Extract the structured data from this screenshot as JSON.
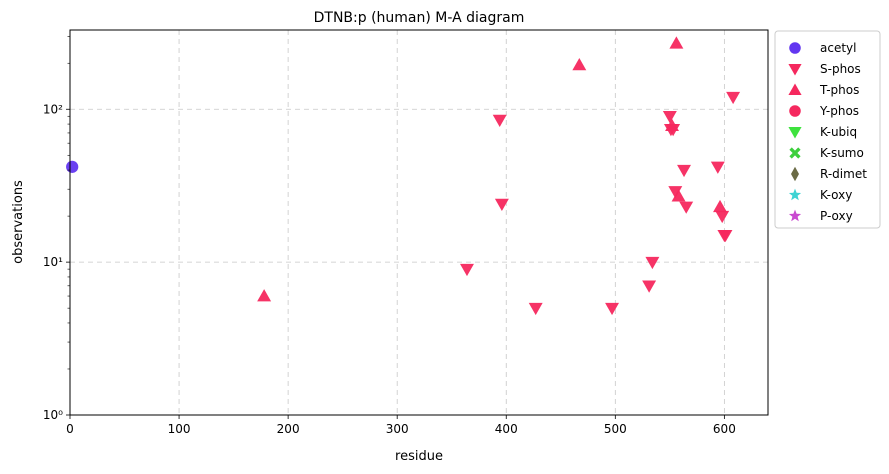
{
  "chart_data": {
    "type": "scatter",
    "title": "DTNB:p (human) M-A diagram",
    "xlabel": "residue",
    "ylabel": "observations",
    "xlim": [
      0,
      640
    ],
    "ylim": [
      1,
      330
    ],
    "yscale": "log",
    "x_ticks": [
      0,
      100,
      200,
      300,
      400,
      500,
      600
    ],
    "y_ticks": [
      {
        "value": 1,
        "label": "10⁰"
      },
      {
        "value": 10,
        "label": "10¹"
      },
      {
        "value": 100,
        "label": "10²"
      }
    ],
    "grid": true,
    "legend_position": "outside-right",
    "series": [
      {
        "name": "acetyl",
        "marker": "circle",
        "color": "#6236f0",
        "points": [
          [
            2,
            42
          ]
        ]
      },
      {
        "name": "S-phos",
        "marker": "triangle-down",
        "color": "#f5285e",
        "points": [
          [
            364,
            9
          ],
          [
            394,
            85
          ],
          [
            396,
            24
          ],
          [
            427,
            5
          ],
          [
            497,
            5
          ],
          [
            531,
            7
          ],
          [
            534,
            10
          ],
          [
            550,
            90
          ],
          [
            551,
            74
          ],
          [
            553,
            74
          ],
          [
            555,
            29
          ],
          [
            563,
            40
          ],
          [
            565,
            23
          ],
          [
            594,
            42
          ],
          [
            598,
            20
          ],
          [
            600,
            15
          ],
          [
            601,
            15
          ],
          [
            608,
            120
          ]
        ]
      },
      {
        "name": "T-phos",
        "marker": "triangle-up",
        "color": "#f5285e",
        "points": [
          [
            178,
            6
          ],
          [
            467,
            195
          ],
          [
            552,
            78
          ],
          [
            556,
            270
          ],
          [
            558,
            27
          ],
          [
            596,
            23
          ]
        ]
      },
      {
        "name": "Y-phos",
        "marker": "circle",
        "color": "#f5285e",
        "points": []
      },
      {
        "name": "K-ubiq",
        "marker": "triangle-down",
        "color": "#3ee23e",
        "points": []
      },
      {
        "name": "K-sumo",
        "marker": "x",
        "color": "#3ccf3c",
        "points": []
      },
      {
        "name": "R-dimet",
        "marker": "diamond",
        "color": "#6b6b45",
        "points": []
      },
      {
        "name": "K-oxy",
        "marker": "star",
        "color": "#3dd3d3",
        "points": []
      },
      {
        "name": "P-oxy",
        "marker": "star",
        "color": "#c94ad0",
        "points": []
      }
    ]
  }
}
